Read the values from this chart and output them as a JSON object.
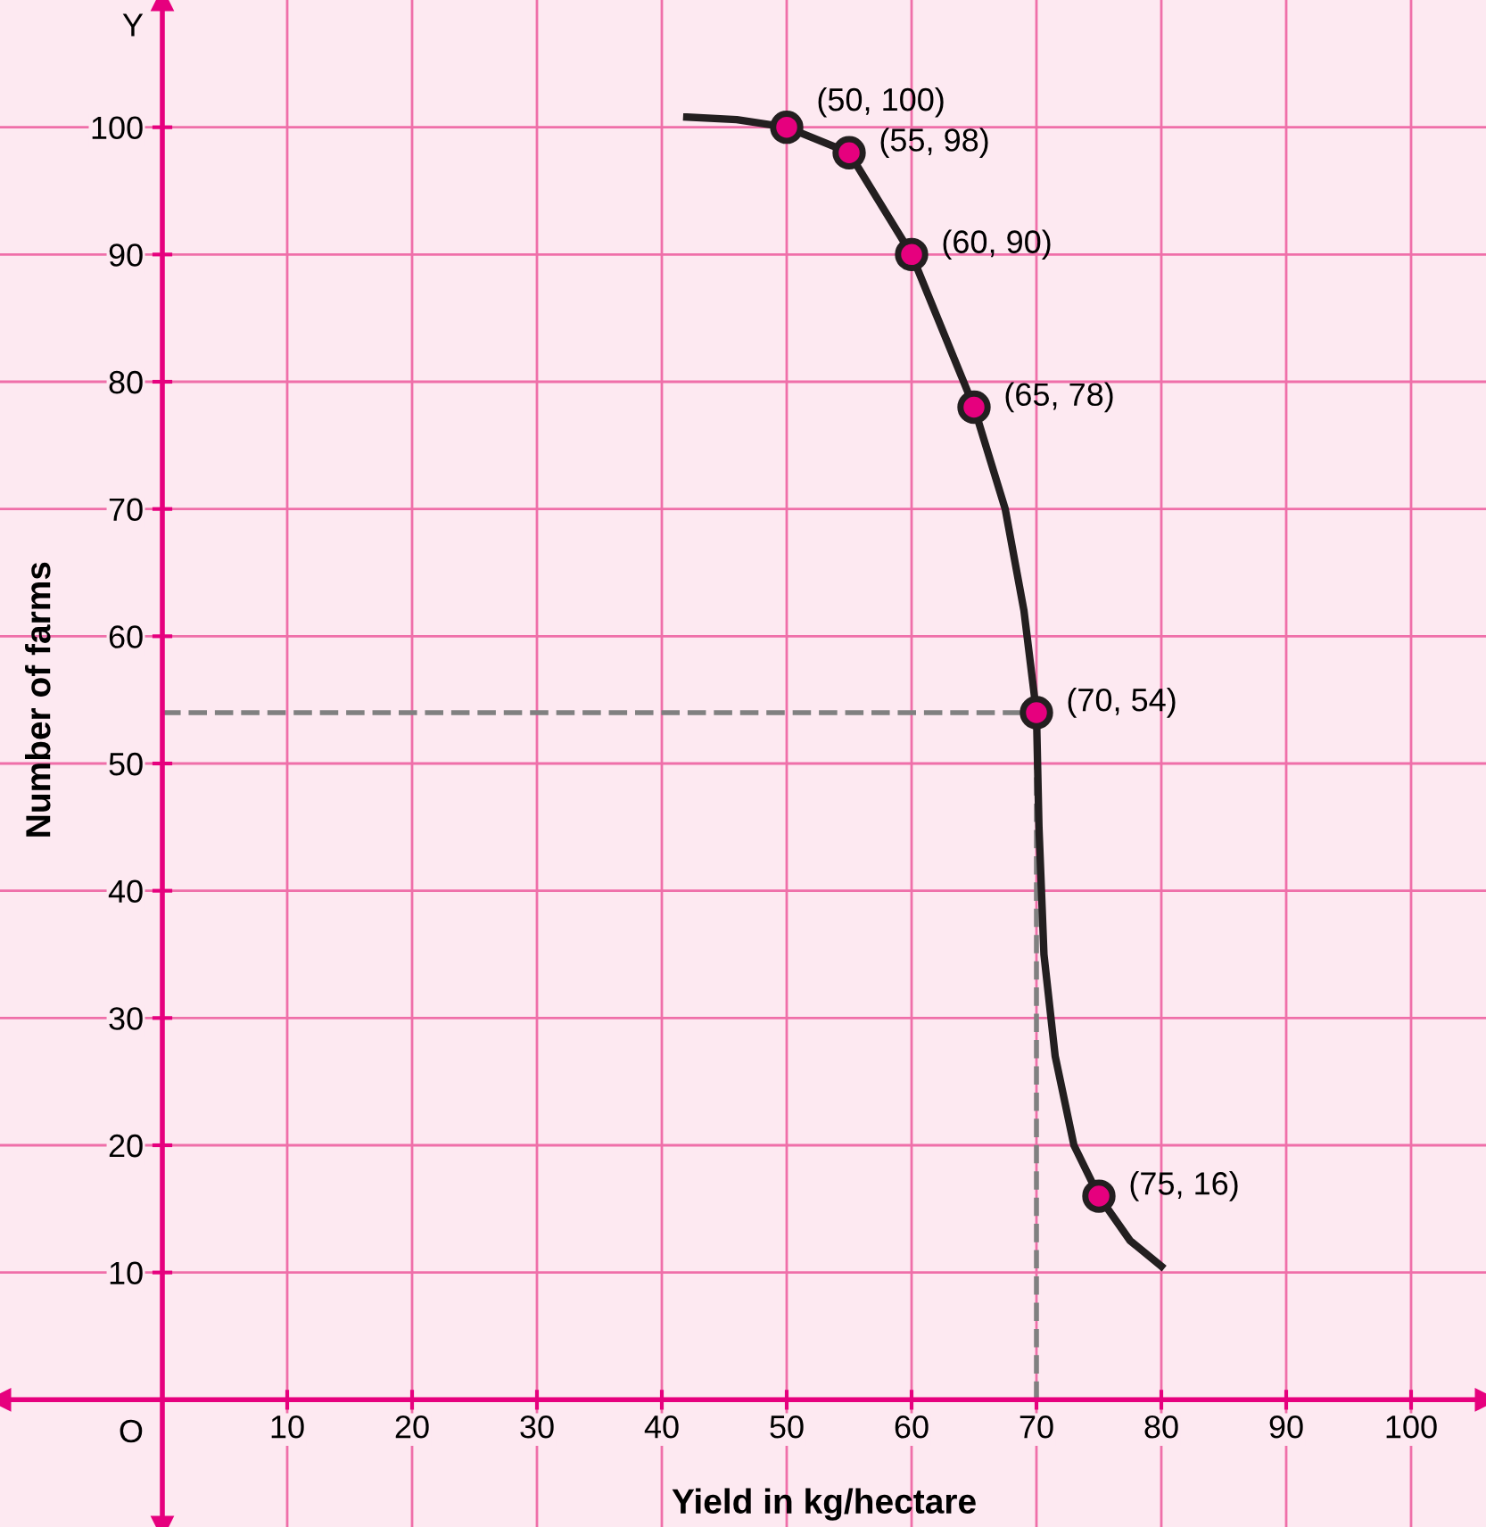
{
  "chart_data": {
    "type": "line",
    "xlabel": "Yield in kg/hectare",
    "ylabel": "Number of farms",
    "xlim": [
      -13,
      106
    ],
    "ylim": [
      -10,
      110
    ],
    "xticks": [
      10,
      20,
      30,
      40,
      50,
      60,
      70,
      80,
      90,
      100
    ],
    "yticks": [
      10,
      20,
      30,
      40,
      50,
      60,
      70,
      80,
      90,
      100
    ],
    "grid": true,
    "series": [
      {
        "color": "#231f20",
        "marker": "none",
        "x": [
          42,
          46,
          50,
          55,
          60,
          65,
          67.5,
          69,
          70,
          70.2,
          70.6,
          71.5,
          73,
          75,
          77.5,
          80
        ],
        "values": [
          100.8,
          100.6,
          100,
          98,
          90,
          78,
          70,
          62,
          54,
          45,
          35,
          27,
          20,
          16,
          12.5,
          10.5
        ]
      },
      {
        "type": "scatter",
        "color": "#e6007e",
        "marker": "circle",
        "x": [
          50,
          55,
          60,
          65,
          70,
          75
        ],
        "values": [
          100,
          98,
          90,
          78,
          54,
          16
        ]
      }
    ],
    "ref_lines": [
      {
        "axis": "y",
        "value": 54,
        "color": "#808080",
        "line_style": "dashed"
      },
      {
        "axis": "x",
        "value": 70,
        "color": "#808080",
        "line_style": "dashed"
      }
    ],
    "annotations": [
      {
        "text": "(50, 100)",
        "x": 50,
        "y": 100
      },
      {
        "text": "(55, 98)",
        "x": 55,
        "y": 98
      },
      {
        "text": "(60, 90)",
        "x": 60,
        "y": 90
      },
      {
        "text": "(65, 78)",
        "x": 65,
        "y": 78
      },
      {
        "text": "(70, 54)",
        "x": 70,
        "y": 54
      },
      {
        "text": "(75, 16)",
        "x": 75,
        "y": 16
      },
      "O",
      "Y"
    ]
  }
}
